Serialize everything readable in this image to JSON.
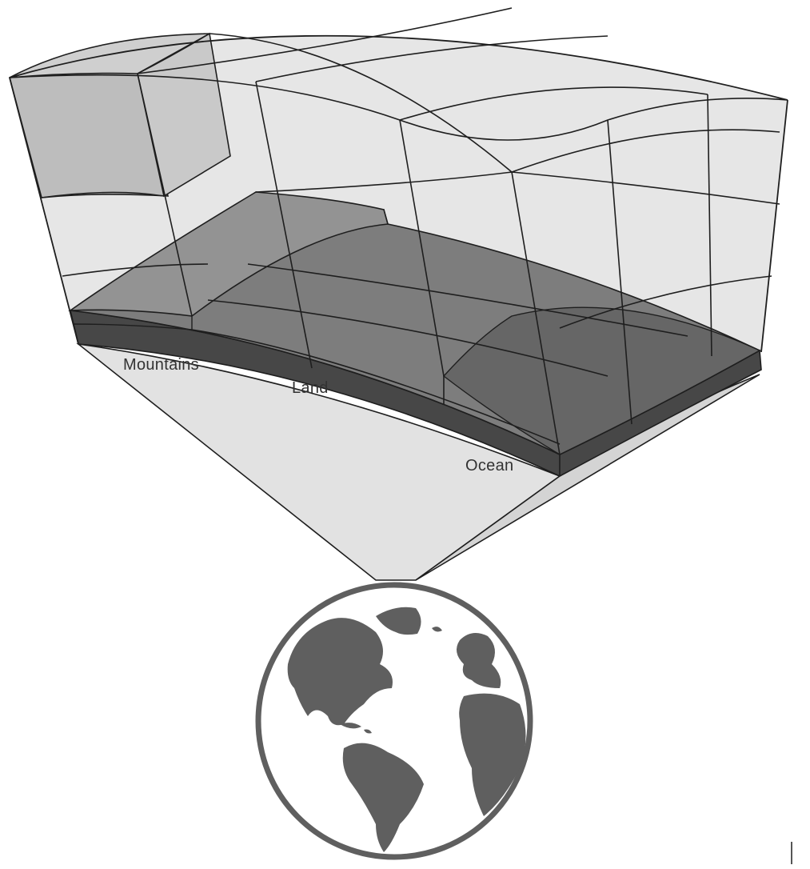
{
  "labels": {
    "mountains": "Mountains",
    "land": "Land",
    "ocean": "Ocean"
  },
  "colors": {
    "air_cell": "#e4e4e4",
    "air_cell_highlight": "#bcbcbc",
    "fan": "#e0e0e0",
    "slab_top": "#7b7b7b",
    "slab_front": "#4a4a4a",
    "plateau": "#909090",
    "ocean_top": "#6a6a6a",
    "globe": "#5f5f5f",
    "line": "#1e1e1e"
  },
  "icons": {
    "globe": "earth-globe-icon"
  }
}
